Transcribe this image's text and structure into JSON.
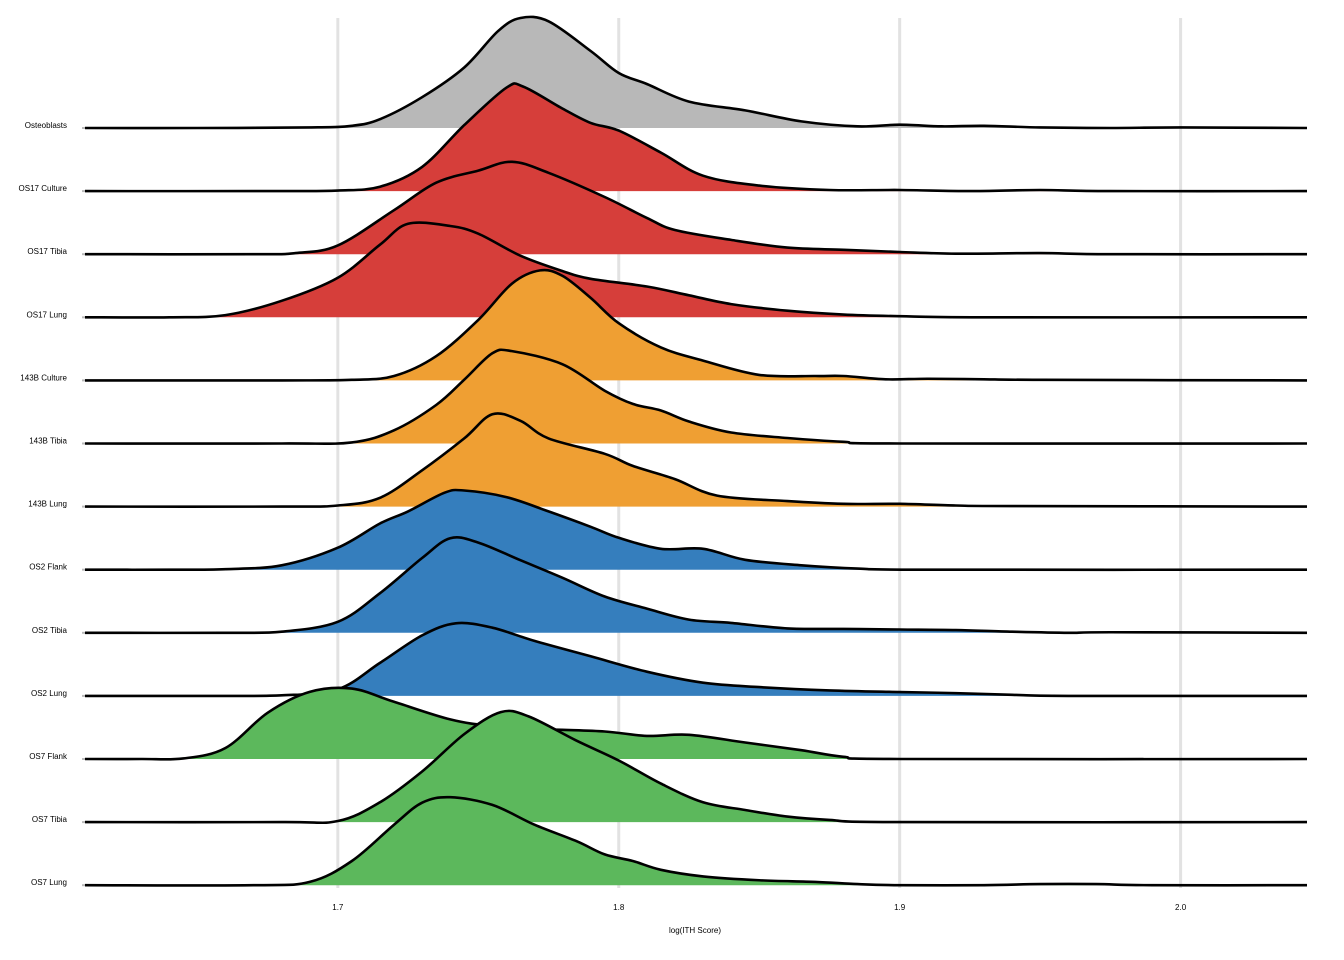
{
  "chart_data": {
    "type": "ridgeline",
    "xlabel": "log(ITH Score)",
    "ylabel": "",
    "xlim": [
      1.61,
      2.045
    ],
    "xticks": [
      1.7,
      1.8,
      1.9,
      2.0
    ],
    "grid": true,
    "legend": "none",
    "series": [
      {
        "name": "Osteoblasts",
        "color": "#b8b8b8",
        "points": [
          [
            1.61,
            0
          ],
          [
            1.65,
            0
          ],
          [
            1.69,
            0.005
          ],
          [
            1.705,
            0.02
          ],
          [
            1.715,
            0.08
          ],
          [
            1.73,
            0.28
          ],
          [
            1.745,
            0.55
          ],
          [
            1.757,
            0.88
          ],
          [
            1.765,
            1.0
          ],
          [
            1.775,
            0.97
          ],
          [
            1.79,
            0.7
          ],
          [
            1.8,
            0.5
          ],
          [
            1.81,
            0.4
          ],
          [
            1.825,
            0.24
          ],
          [
            1.845,
            0.16
          ],
          [
            1.865,
            0.06
          ],
          [
            1.885,
            0.015
          ],
          [
            1.9,
            0.03
          ],
          [
            1.915,
            0.015
          ],
          [
            1.93,
            0.02
          ],
          [
            1.95,
            0.005
          ],
          [
            1.975,
            0
          ],
          [
            2.0,
            0.005
          ],
          [
            2.045,
            0
          ]
        ]
      },
      {
        "name": "OS17 Culture",
        "color": "#d63e3a",
        "points": [
          [
            1.61,
            0
          ],
          [
            1.68,
            0
          ],
          [
            1.7,
            0.005
          ],
          [
            1.715,
            0.04
          ],
          [
            1.73,
            0.22
          ],
          [
            1.745,
            0.6
          ],
          [
            1.76,
            0.94
          ],
          [
            1.766,
            0.95
          ],
          [
            1.78,
            0.75
          ],
          [
            1.79,
            0.62
          ],
          [
            1.8,
            0.55
          ],
          [
            1.815,
            0.35
          ],
          [
            1.83,
            0.14
          ],
          [
            1.85,
            0.05
          ],
          [
            1.875,
            0.01
          ],
          [
            1.9,
            0.01
          ],
          [
            1.925,
            0
          ],
          [
            1.95,
            0.01
          ],
          [
            1.975,
            0
          ],
          [
            2.045,
            0
          ]
        ]
      },
      {
        "name": "OS17 Tibia",
        "color": "#d63e3a",
        "points": [
          [
            1.61,
            0
          ],
          [
            1.67,
            0
          ],
          [
            1.685,
            0.01
          ],
          [
            1.7,
            0.08
          ],
          [
            1.72,
            0.4
          ],
          [
            1.735,
            0.65
          ],
          [
            1.75,
            0.76
          ],
          [
            1.762,
            0.84
          ],
          [
            1.775,
            0.74
          ],
          [
            1.795,
            0.52
          ],
          [
            1.81,
            0.33
          ],
          [
            1.82,
            0.22
          ],
          [
            1.84,
            0.13
          ],
          [
            1.86,
            0.06
          ],
          [
            1.88,
            0.04
          ],
          [
            1.9,
            0.02
          ],
          [
            1.92,
            0.005
          ],
          [
            1.95,
            0.01
          ],
          [
            1.975,
            0
          ],
          [
            2.045,
            0
          ]
        ]
      },
      {
        "name": "OS17 Lung",
        "color": "#d63e3a",
        "points": [
          [
            1.61,
            0
          ],
          [
            1.64,
            0
          ],
          [
            1.66,
            0.02
          ],
          [
            1.68,
            0.15
          ],
          [
            1.7,
            0.36
          ],
          [
            1.715,
            0.66
          ],
          [
            1.725,
            0.85
          ],
          [
            1.74,
            0.83
          ],
          [
            1.75,
            0.76
          ],
          [
            1.765,
            0.56
          ],
          [
            1.78,
            0.42
          ],
          [
            1.79,
            0.35
          ],
          [
            1.81,
            0.28
          ],
          [
            1.825,
            0.2
          ],
          [
            1.84,
            0.12
          ],
          [
            1.86,
            0.06
          ],
          [
            1.88,
            0.025
          ],
          [
            1.9,
            0.01
          ],
          [
            1.93,
            0
          ],
          [
            2.045,
            0
          ]
        ]
      },
      {
        "name": "143B Culture",
        "color": "#ef9f33",
        "points": [
          [
            1.61,
            0
          ],
          [
            1.68,
            0
          ],
          [
            1.705,
            0.005
          ],
          [
            1.72,
            0.04
          ],
          [
            1.735,
            0.22
          ],
          [
            1.75,
            0.55
          ],
          [
            1.762,
            0.88
          ],
          [
            1.772,
            1.0
          ],
          [
            1.78,
            0.95
          ],
          [
            1.79,
            0.75
          ],
          [
            1.8,
            0.52
          ],
          [
            1.815,
            0.3
          ],
          [
            1.83,
            0.18
          ],
          [
            1.85,
            0.05
          ],
          [
            1.87,
            0.04
          ],
          [
            1.88,
            0.04
          ],
          [
            1.895,
            0.01
          ],
          [
            1.91,
            0.015
          ],
          [
            1.93,
            0.01
          ],
          [
            1.95,
            0.005
          ],
          [
            2.045,
            0
          ]
        ]
      },
      {
        "name": "143B Tibia",
        "color": "#ef9f33",
        "points": [
          [
            1.61,
            0
          ],
          [
            1.68,
            0
          ],
          [
            1.705,
            0.01
          ],
          [
            1.72,
            0.12
          ],
          [
            1.735,
            0.35
          ],
          [
            1.745,
            0.58
          ],
          [
            1.755,
            0.82
          ],
          [
            1.762,
            0.84
          ],
          [
            1.78,
            0.72
          ],
          [
            1.795,
            0.48
          ],
          [
            1.805,
            0.36
          ],
          [
            1.815,
            0.3
          ],
          [
            1.825,
            0.2
          ],
          [
            1.84,
            0.1
          ],
          [
            1.86,
            0.05
          ],
          [
            1.88,
            0.015
          ],
          [
            1.9,
            0
          ],
          [
            2.045,
            0
          ]
        ]
      },
      {
        "name": "143B Lung",
        "color": "#ef9f33",
        "points": [
          [
            1.61,
            0
          ],
          [
            1.68,
            0
          ],
          [
            1.7,
            0.01
          ],
          [
            1.715,
            0.08
          ],
          [
            1.73,
            0.33
          ],
          [
            1.745,
            0.62
          ],
          [
            1.755,
            0.84
          ],
          [
            1.765,
            0.78
          ],
          [
            1.775,
            0.62
          ],
          [
            1.795,
            0.48
          ],
          [
            1.805,
            0.37
          ],
          [
            1.82,
            0.25
          ],
          [
            1.835,
            0.1
          ],
          [
            1.86,
            0.05
          ],
          [
            1.88,
            0.025
          ],
          [
            1.9,
            0.025
          ],
          [
            1.92,
            0.01
          ],
          [
            1.94,
            0.005
          ],
          [
            2.045,
            0
          ]
        ]
      },
      {
        "name": "OS2 Flank",
        "color": "#357ebd",
        "points": [
          [
            1.61,
            0
          ],
          [
            1.64,
            0
          ],
          [
            1.66,
            0.005
          ],
          [
            1.68,
            0.04
          ],
          [
            1.7,
            0.2
          ],
          [
            1.715,
            0.42
          ],
          [
            1.725,
            0.53
          ],
          [
            1.738,
            0.7
          ],
          [
            1.745,
            0.72
          ],
          [
            1.76,
            0.66
          ],
          [
            1.775,
            0.53
          ],
          [
            1.79,
            0.39
          ],
          [
            1.8,
            0.29
          ],
          [
            1.815,
            0.19
          ],
          [
            1.83,
            0.19
          ],
          [
            1.845,
            0.09
          ],
          [
            1.865,
            0.04
          ],
          [
            1.885,
            0.01
          ],
          [
            1.91,
            0
          ],
          [
            2.045,
            0
          ]
        ]
      },
      {
        "name": "OS2 Tibia",
        "color": "#357ebd",
        "points": [
          [
            1.61,
            0
          ],
          [
            1.66,
            0
          ],
          [
            1.68,
            0.01
          ],
          [
            1.7,
            0.1
          ],
          [
            1.715,
            0.36
          ],
          [
            1.73,
            0.68
          ],
          [
            1.74,
            0.86
          ],
          [
            1.75,
            0.82
          ],
          [
            1.765,
            0.66
          ],
          [
            1.78,
            0.5
          ],
          [
            1.795,
            0.33
          ],
          [
            1.81,
            0.22
          ],
          [
            1.825,
            0.12
          ],
          [
            1.84,
            0.09
          ],
          [
            1.86,
            0.04
          ],
          [
            1.88,
            0.035
          ],
          [
            1.9,
            0.03
          ],
          [
            1.92,
            0.025
          ],
          [
            1.94,
            0.01
          ],
          [
            1.96,
            0
          ],
          [
            1.975,
            0.005
          ],
          [
            2.045,
            0
          ]
        ]
      },
      {
        "name": "OS2 Lung",
        "color": "#357ebd",
        "points": [
          [
            1.61,
            0
          ],
          [
            1.65,
            0
          ],
          [
            1.68,
            0.005
          ],
          [
            1.7,
            0.06
          ],
          [
            1.715,
            0.3
          ],
          [
            1.73,
            0.55
          ],
          [
            1.742,
            0.66
          ],
          [
            1.755,
            0.62
          ],
          [
            1.77,
            0.5
          ],
          [
            1.79,
            0.36
          ],
          [
            1.81,
            0.22
          ],
          [
            1.83,
            0.12
          ],
          [
            1.85,
            0.08
          ],
          [
            1.875,
            0.05
          ],
          [
            1.9,
            0.035
          ],
          [
            1.92,
            0.025
          ],
          [
            1.94,
            0.01
          ],
          [
            1.96,
            0
          ],
          [
            2.045,
            0
          ]
        ]
      },
      {
        "name": "OS7 Flank",
        "color": "#5cb85c",
        "points": [
          [
            1.61,
            0
          ],
          [
            1.63,
            0
          ],
          [
            1.645,
            0.005
          ],
          [
            1.66,
            0.1
          ],
          [
            1.675,
            0.42
          ],
          [
            1.69,
            0.61
          ],
          [
            1.705,
            0.64
          ],
          [
            1.72,
            0.52
          ],
          [
            1.74,
            0.36
          ],
          [
            1.755,
            0.3
          ],
          [
            1.775,
            0.27
          ],
          [
            1.795,
            0.25
          ],
          [
            1.81,
            0.21
          ],
          [
            1.825,
            0.22
          ],
          [
            1.845,
            0.15
          ],
          [
            1.865,
            0.08
          ],
          [
            1.88,
            0.02
          ],
          [
            1.9,
            0
          ],
          [
            2.045,
            0
          ]
        ]
      },
      {
        "name": "OS7 Tibia",
        "color": "#5cb85c",
        "points": [
          [
            1.61,
            0
          ],
          [
            1.68,
            0
          ],
          [
            1.7,
            0.01
          ],
          [
            1.715,
            0.18
          ],
          [
            1.73,
            0.46
          ],
          [
            1.745,
            0.8
          ],
          [
            1.758,
            1.0
          ],
          [
            1.768,
            0.96
          ],
          [
            1.785,
            0.74
          ],
          [
            1.8,
            0.56
          ],
          [
            1.815,
            0.35
          ],
          [
            1.83,
            0.18
          ],
          [
            1.845,
            0.11
          ],
          [
            1.86,
            0.05
          ],
          [
            1.875,
            0.02
          ],
          [
            1.9,
            0
          ],
          [
            2.045,
            0
          ]
        ]
      },
      {
        "name": "OS7 Lung",
        "color": "#5cb85c",
        "points": [
          [
            1.61,
            0
          ],
          [
            1.67,
            0
          ],
          [
            1.69,
            0.03
          ],
          [
            1.705,
            0.22
          ],
          [
            1.72,
            0.55
          ],
          [
            1.73,
            0.75
          ],
          [
            1.74,
            0.8
          ],
          [
            1.755,
            0.73
          ],
          [
            1.77,
            0.55
          ],
          [
            1.785,
            0.4
          ],
          [
            1.795,
            0.28
          ],
          [
            1.805,
            0.22
          ],
          [
            1.815,
            0.14
          ],
          [
            1.83,
            0.08
          ],
          [
            1.85,
            0.045
          ],
          [
            1.87,
            0.03
          ],
          [
            1.885,
            0.01
          ],
          [
            1.9,
            0
          ],
          [
            1.93,
            0
          ],
          [
            1.95,
            0.01
          ],
          [
            1.97,
            0.01
          ],
          [
            1.99,
            0
          ],
          [
            2.045,
            0
          ]
        ]
      }
    ]
  }
}
